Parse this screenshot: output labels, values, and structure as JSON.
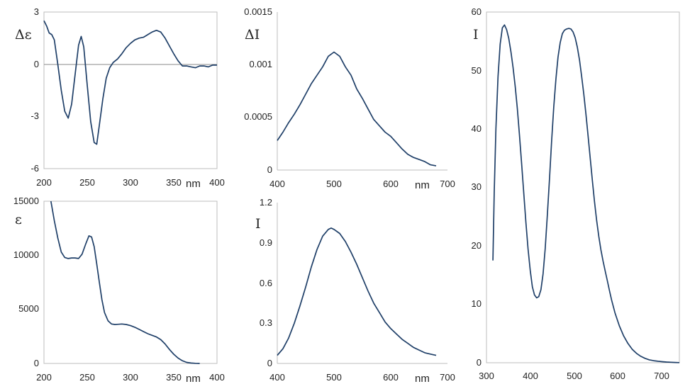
{
  "chart_data": [
    {
      "id": "cd",
      "type": "line",
      "ylabel": "Δε",
      "xunit": "nm",
      "xlim": [
        200,
        400
      ],
      "ylim": [
        -6,
        3
      ],
      "x_ticks": [
        "200",
        "250",
        "300",
        "350",
        "400"
      ],
      "y_ticks": [
        "3",
        "0",
        "-3",
        "-6"
      ],
      "zero_line": true,
      "series": [
        {
          "x": [
            200,
            203,
            206,
            209,
            212,
            216,
            220,
            224,
            228,
            232,
            236,
            240,
            243,
            246,
            250,
            254,
            258,
            261,
            264,
            268,
            272,
            276,
            280,
            285,
            290,
            295,
            300,
            305,
            310,
            315,
            320,
            325,
            330,
            335,
            340,
            345,
            350,
            355,
            360,
            365,
            370,
            375,
            380,
            385,
            390,
            395,
            400
          ],
          "y": [
            2.5,
            2.2,
            1.8,
            1.7,
            1.4,
            0.0,
            -1.5,
            -2.7,
            -3.1,
            -2.3,
            -0.6,
            1.1,
            1.6,
            1.0,
            -1.2,
            -3.3,
            -4.5,
            -4.6,
            -3.5,
            -2.0,
            -0.8,
            -0.2,
            0.1,
            0.3,
            0.6,
            0.95,
            1.2,
            1.4,
            1.5,
            1.55,
            1.7,
            1.85,
            1.95,
            1.85,
            1.5,
            1.05,
            0.6,
            0.2,
            -0.1,
            -0.1,
            -0.15,
            -0.2,
            -0.1,
            -0.1,
            -0.15,
            -0.05,
            -0.05
          ]
        }
      ]
    },
    {
      "id": "cpl",
      "type": "line",
      "ylabel": "ΔI",
      "xunit": "nm",
      "xlim": [
        400,
        700
      ],
      "ylim": [
        0,
        0.0015
      ],
      "x_ticks": [
        "400",
        "500",
        "600",
        "700"
      ],
      "y_ticks": [
        "0.0015",
        "0.001",
        "0.0005",
        "0"
      ],
      "series": [
        {
          "x": [
            400,
            410,
            420,
            430,
            440,
            450,
            460,
            470,
            480,
            490,
            500,
            510,
            520,
            530,
            540,
            550,
            560,
            570,
            580,
            590,
            600,
            610,
            620,
            630,
            640,
            650,
            660,
            670,
            680
          ],
          "y": [
            0.00028,
            0.00036,
            0.00045,
            0.00053,
            0.00062,
            0.00072,
            0.00082,
            0.0009,
            0.00098,
            0.00108,
            0.00112,
            0.00108,
            0.00098,
            0.0009,
            0.00077,
            0.00068,
            0.00058,
            0.00048,
            0.00042,
            0.00036,
            0.00032,
            0.00026,
            0.0002,
            0.00015,
            0.00012,
            0.0001,
            8e-05,
            5e-05,
            4e-05
          ]
        }
      ]
    },
    {
      "id": "pl_full",
      "type": "line",
      "ylabel": "I",
      "xlim": [
        300,
        750
      ],
      "ylim": [
        0,
        60
      ],
      "x_ticks": [
        "300",
        "400",
        "500",
        "600",
        "700"
      ],
      "y_ticks": [
        "60",
        "50",
        "40",
        "30",
        "20",
        "10",
        "0"
      ],
      "series": [
        {
          "x": [
            315,
            318,
            322,
            327,
            332,
            337,
            342,
            347,
            352,
            357,
            362,
            367,
            372,
            377,
            382,
            387,
            392,
            397,
            402,
            407,
            412,
            417,
            422,
            427,
            432,
            437,
            442,
            447,
            452,
            457,
            462,
            467,
            472,
            477,
            482,
            487,
            492,
            497,
            502,
            507,
            512,
            517,
            522,
            527,
            532,
            537,
            542,
            547,
            552,
            557,
            562,
            567,
            572,
            577,
            582,
            587,
            592,
            600,
            610,
            620,
            630,
            640,
            650,
            660,
            670,
            680,
            690,
            700,
            710,
            720,
            730,
            740,
            750
          ],
          "y": [
            17.5,
            29.0,
            40.0,
            49.0,
            54.5,
            57.3,
            57.8,
            57.0,
            55.5,
            53.2,
            50.5,
            47.3,
            43.5,
            39.0,
            34.0,
            29.0,
            24.0,
            19.5,
            15.8,
            13.0,
            11.6,
            11.1,
            11.3,
            12.5,
            15.2,
            19.5,
            25.2,
            31.5,
            38.0,
            43.8,
            48.5,
            52.3,
            54.8,
            56.3,
            56.9,
            57.1,
            57.2,
            57.1,
            56.6,
            55.6,
            54.0,
            51.8,
            49.0,
            46.0,
            42.6,
            38.8,
            35.0,
            31.2,
            27.6,
            24.4,
            21.6,
            19.3,
            17.4,
            15.7,
            14.0,
            12.3,
            10.7,
            8.5,
            6.3,
            4.6,
            3.3,
            2.3,
            1.6,
            1.1,
            0.75,
            0.5,
            0.35,
            0.25,
            0.18,
            0.12,
            0.08,
            0.05,
            0.03
          ]
        }
      ]
    },
    {
      "id": "abs",
      "type": "line",
      "ylabel": "ε",
      "xunit": "nm",
      "xlim": [
        200,
        400
      ],
      "ylim": [
        0,
        15000
      ],
      "x_ticks": [
        "200",
        "250",
        "300",
        "350",
        "400"
      ],
      "y_ticks": [
        "15000",
        "10000",
        "5000",
        "0"
      ],
      "series": [
        {
          "x": [
            208,
            212,
            216,
            220,
            224,
            228,
            232,
            236,
            240,
            244,
            248,
            252,
            255,
            258,
            261,
            264,
            267,
            270,
            274,
            278,
            282,
            286,
            290,
            295,
            300,
            305,
            310,
            315,
            320,
            325,
            330,
            335,
            340,
            345,
            350,
            355,
            360,
            365,
            370,
            375,
            380
          ],
          "y": [
            15000,
            13200,
            11600,
            10300,
            9800,
            9700,
            9750,
            9750,
            9700,
            10100,
            11000,
            11800,
            11700,
            10800,
            9200,
            7500,
            5900,
            4700,
            3950,
            3650,
            3600,
            3620,
            3650,
            3600,
            3500,
            3350,
            3150,
            2950,
            2750,
            2600,
            2450,
            2200,
            1800,
            1300,
            850,
            500,
            250,
            100,
            40,
            10,
            0
          ]
        }
      ]
    },
    {
      "id": "pl",
      "type": "line",
      "ylabel": "I",
      "xunit": "nm",
      "xlim": [
        400,
        700
      ],
      "ylim": [
        0,
        1.2
      ],
      "x_ticks": [
        "400",
        "500",
        "600",
        "700"
      ],
      "y_ticks": [
        "1.2",
        "0.9",
        "0.6",
        "0.3",
        "0"
      ],
      "series": [
        {
          "x": [
            400,
            410,
            420,
            430,
            440,
            450,
            460,
            470,
            480,
            490,
            495,
            500,
            510,
            520,
            530,
            540,
            550,
            560,
            570,
            580,
            590,
            600,
            610,
            620,
            630,
            640,
            650,
            660,
            670,
            680
          ],
          "y": [
            0.06,
            0.11,
            0.19,
            0.3,
            0.43,
            0.57,
            0.72,
            0.85,
            0.95,
            1.0,
            1.01,
            1.0,
            0.97,
            0.91,
            0.83,
            0.74,
            0.64,
            0.54,
            0.45,
            0.38,
            0.31,
            0.26,
            0.22,
            0.18,
            0.15,
            0.12,
            0.1,
            0.08,
            0.07,
            0.06
          ]
        }
      ]
    }
  ]
}
